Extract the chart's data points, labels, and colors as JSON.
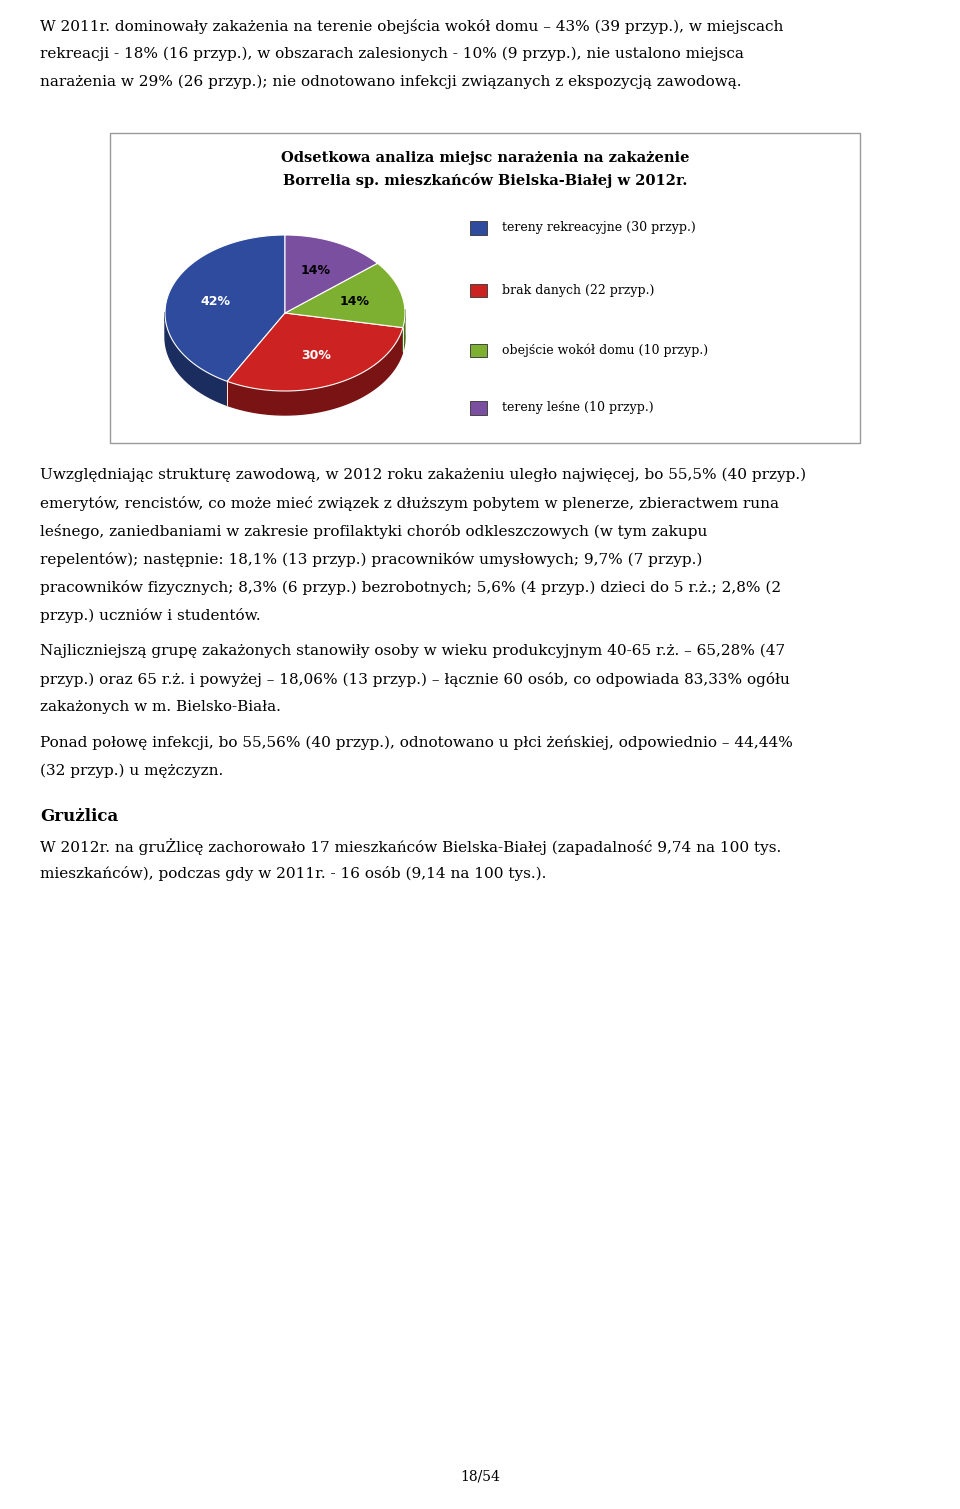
{
  "title1": "Odsetkowa analiza miejsc narażenia na zakażenie",
  "title2": "Borrelia sp. mieszkańców Bielska-Białej w 2012r.",
  "slices": [
    42,
    30,
    14,
    14
  ],
  "labels_pct": [
    "42%",
    "30%",
    "14%",
    "14%"
  ],
  "colors": [
    "#2E4B9E",
    "#CC2222",
    "#7DB030",
    "#7B4FA0"
  ],
  "legend_labels": [
    "tereny rekreacyjne (30 przyp.)",
    "brak danych (22 przyp.)",
    "obejście wokół domu (10 przyp.)",
    "tereny leśne (10 przyp.)"
  ],
  "startangle": 90,
  "background_color": "#FFFFFF",
  "box_facecolor": "#FFFFFF",
  "box_edgecolor": "#AAAAAA",
  "title_fontsize": 10.5,
  "label_fontsize": 9,
  "legend_fontsize": 9,
  "body_fontsize": 11,
  "para1": "W 2011r. dominowały zakażenia na terenie obejścia wokół domu – 43% (39 przyp.), w miejscach rekreacji - 18% (16 przyp.), w obszarach zalesionych - 10% (9 przyp.), nie ustalono miejsca narażenia w 29% (26 przyp.); nie odnotowano infekcji związanych z ekspozycją zawodową.",
  "para2": "Uwzględniając strukturę zawodową, w 2012 roku zakażeniu uległo najwięcej, bo 55,5% (40 przyp.) emerytów, rencistów, co może mieć związek z dłuższym pobytem w plenerze, zbieractwem runa leśnego, zaniedbaniami w zakresie profilaktyki chorób odkleszczowych (w tym zakupu repelentów); następnie: 18,1% (13 przyp.) pracowników umysłowych; 9,7% (7 przyp.) pracowników fizycznych; 8,3% (6 przyp.) bezrobotnych; 5,6% (4 przyp.) dzieci do 5 r.ż.; 2,8% (2 przyp.) uczniów i studentów.",
  "para3": "Najliczniejszą grupę zakażonych stanowiły osoby w wieku produkcyjnym 40-65 r.ż. – 65,28% (47 przyp.) oraz 65 r.ż. i powyżej – 18,06% (13 przyp.) – łącznie 60 osób, co odpowiada 83,33% ogółu zakażonych w m. Bielsko-Biała.",
  "para4": "Ponad połowę infekcji, bo 55,56% (40 przyp.), odnotowano u płci żeńskiej, odpowiednio – 44,44% (32 przyp.) u mężczyzn.",
  "heading": "Grużlica",
  "para5": "W 2012r. na gruŻlicę zachorowało 17 mieszkańców Bielska-Białej (zapadalność 9,74 na 100 tys. mieszkańców), podczas gdy w 2011r. - 16 osób (9,14 na 100 tys.).",
  "footer": "18/54"
}
